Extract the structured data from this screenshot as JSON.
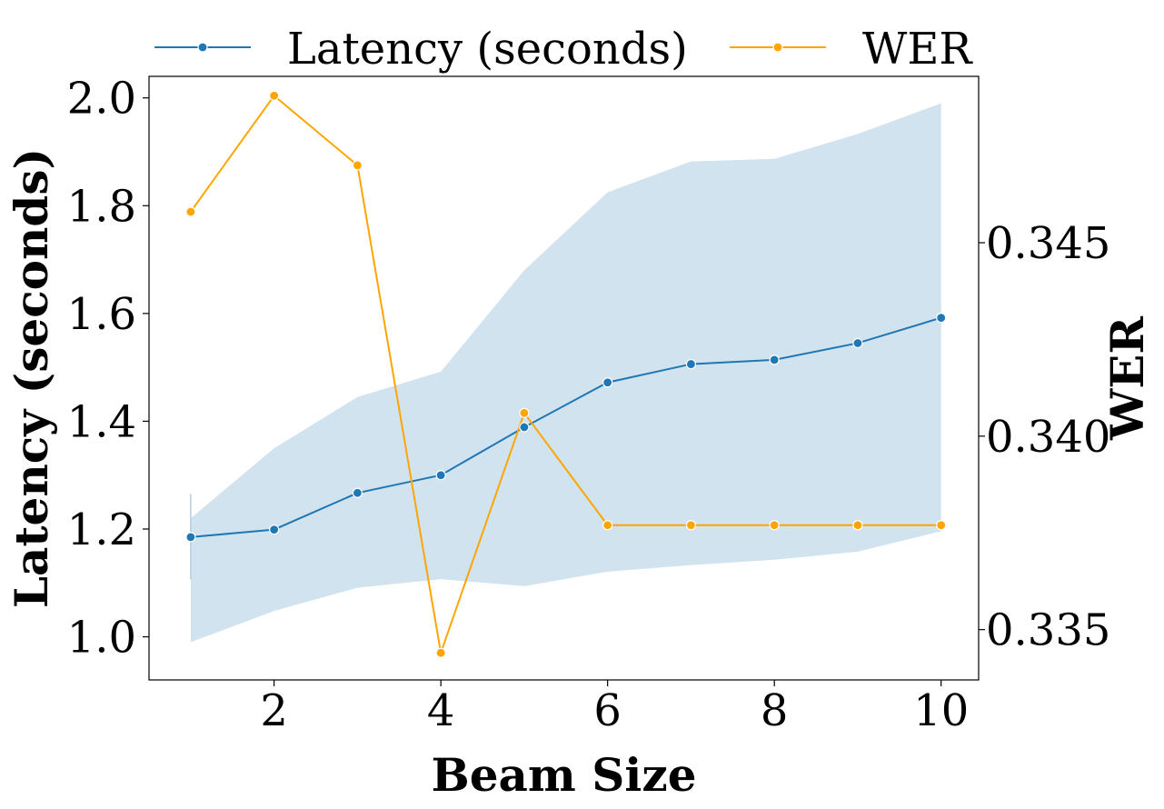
{
  "chart_data": {
    "type": "line",
    "x": [
      1,
      2,
      3,
      4,
      5,
      6,
      7,
      8,
      9,
      10
    ],
    "xlabel": "Beam Size",
    "xlim": [
      0.5,
      10.45
    ],
    "xticks": [
      2,
      4,
      6,
      8,
      10
    ],
    "xtick_labels": [
      "2",
      "4",
      "6",
      "8",
      "10"
    ],
    "ylabel_left": "Latency (seconds)",
    "ylim_left": [
      0.92,
      2.04
    ],
    "yticks_left": [
      1.0,
      1.2,
      1.4,
      1.6,
      1.8,
      2.0
    ],
    "ytick_labels_left": [
      "1.0",
      "1.2",
      "1.4",
      "1.6",
      "1.8",
      "2.0"
    ],
    "ylabel_right": "WER",
    "ylim_right": [
      0.3337,
      0.3493
    ],
    "yticks_right": [
      0.335,
      0.34,
      0.345
    ],
    "ytick_labels_right": [
      "0.335",
      "0.340",
      "0.345"
    ],
    "legend_position": "top, above plot",
    "series": [
      {
        "name": "Latency (seconds)",
        "axis": "left",
        "color": "#1f77b4",
        "band_color": "#d2e3f0",
        "values": [
          1.185,
          1.199,
          1.267,
          1.3,
          1.389,
          1.472,
          1.506,
          1.514,
          1.545,
          1.592
        ],
        "band_lower": [
          0.99,
          1.048,
          1.091,
          1.107,
          1.094,
          1.121,
          1.133,
          1.143,
          1.158,
          1.196
        ],
        "band_upper": [
          1.22,
          1.35,
          1.445,
          1.492,
          1.68,
          1.825,
          1.882,
          1.887,
          1.933,
          1.99
        ],
        "band_vertical_x1": [
          1.107,
          1.265
        ]
      },
      {
        "name": "WER",
        "axis": "right",
        "color": "#ffa500",
        "values": [
          0.3458,
          0.3488,
          0.347,
          0.3344,
          0.3406,
          0.3377,
          0.3377,
          0.3377,
          0.3377,
          0.3377
        ]
      }
    ]
  }
}
